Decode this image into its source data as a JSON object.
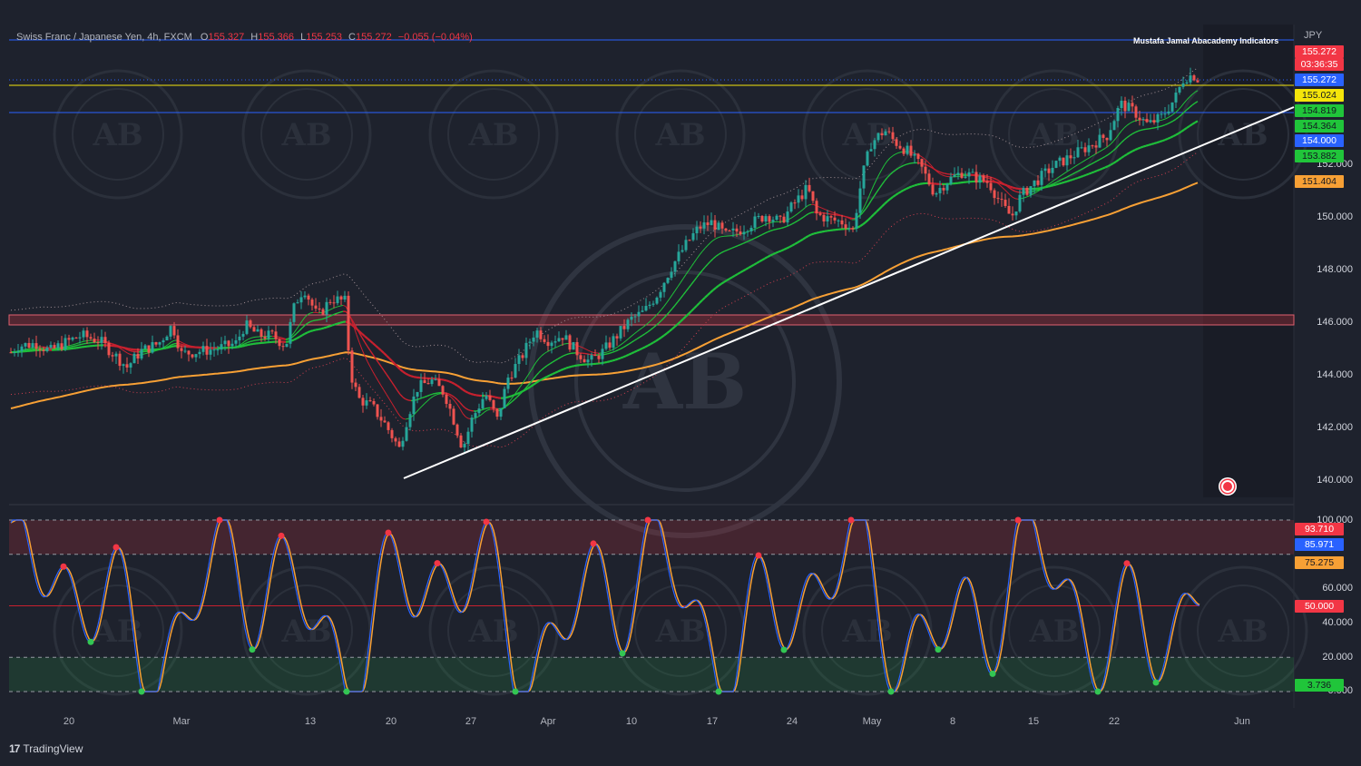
{
  "legend": {
    "symbol": "Swiss Franc / Japanese Yen, 4h, FXCM",
    "o_label": "O",
    "o_value": "155.327",
    "h_label": "H",
    "h_value": "155.366",
    "l_label": "L",
    "l_value": "155.253",
    "c_label": "C",
    "c_value": "155.272",
    "change": "−0.055 (−0.04%)"
  },
  "indicator_name": "Mustafa Jamal Abacademy Indicators",
  "currency": "JPY",
  "price_axis": [
    "140.000",
    "142.000",
    "144.000",
    "146.000",
    "148.000",
    "150.000",
    "152.000"
  ],
  "price_tags": {
    "last": "155.272",
    "countdown": "03:36:35",
    "current": "155.272",
    "yellow": "155.024",
    "green1": "154.819",
    "green2": "154.364",
    "blue": "154.000",
    "green3": "153.882",
    "orange": "151.404"
  },
  "osc_axis": [
    "100.000",
    "60.000",
    "40.000",
    "20.000",
    "0.000"
  ],
  "osc_tags": {
    "red": "93.710",
    "blue": "85.971",
    "orange": "75.275",
    "mid": "50.000",
    "green": "3.736"
  },
  "time_axis": [
    "20",
    "Mar",
    "13",
    "20",
    "27",
    "Apr",
    "10",
    "17",
    "24",
    "May",
    "8",
    "15",
    "22",
    "Jun"
  ],
  "watermark": "AB",
  "brand": "TradingView",
  "brand_mark": "17",
  "colors": {
    "up": "#26a69a",
    "down": "#ef5350",
    "accent": "#2962ff",
    "ema200": "#f7a035",
    "trend": "#ffffff"
  },
  "chart_data": {
    "type": "line",
    "series_type": "candlestick",
    "yrange": [
      140,
      156
    ],
    "close_path": [
      [
        0,
        144.6
      ],
      [
        20,
        145.2
      ],
      [
        40,
        145.3
      ],
      [
        55,
        145.0
      ],
      [
        70,
        145.3
      ],
      [
        90,
        145.6
      ],
      [
        110,
        145.4
      ],
      [
        125,
        144.9
      ],
      [
        140,
        144.4
      ],
      [
        155,
        145.0
      ],
      [
        175,
        145.3
      ],
      [
        190,
        146.0
      ],
      [
        200,
        144.9
      ],
      [
        220,
        145.0
      ],
      [
        240,
        145.1
      ],
      [
        260,
        145.3
      ],
      [
        270,
        146.0
      ],
      [
        285,
        145.6
      ],
      [
        300,
        145.6
      ],
      [
        315,
        145.2
      ],
      [
        325,
        146.8
      ],
      [
        335,
        147.4
      ],
      [
        350,
        146.3
      ],
      [
        365,
        147.0
      ],
      [
        380,
        146.9
      ],
      [
        386,
        144.2
      ],
      [
        395,
        143.2
      ],
      [
        410,
        142.9
      ],
      [
        425,
        142.2
      ],
      [
        440,
        141.3
      ],
      [
        450,
        142.6
      ],
      [
        460,
        143.6
      ],
      [
        475,
        143.9
      ],
      [
        490,
        143.4
      ],
      [
        500,
        142.4
      ],
      [
        510,
        141.3
      ],
      [
        520,
        142.4
      ],
      [
        535,
        143.4
      ],
      [
        548,
        142.4
      ],
      [
        560,
        144.0
      ],
      [
        575,
        144.8
      ],
      [
        590,
        145.8
      ],
      [
        605,
        145.4
      ],
      [
        620,
        145.6
      ],
      [
        635,
        145.0
      ],
      [
        650,
        144.6
      ],
      [
        665,
        145.0
      ],
      [
        680,
        145.6
      ],
      [
        695,
        146.2
      ],
      [
        710,
        146.5
      ],
      [
        725,
        147.2
      ],
      [
        740,
        148.2
      ],
      [
        755,
        149.0
      ],
      [
        770,
        149.7
      ],
      [
        785,
        149.9
      ],
      [
        800,
        149.4
      ],
      [
        815,
        149.6
      ],
      [
        830,
        149.9
      ],
      [
        845,
        150.2
      ],
      [
        860,
        149.9
      ],
      [
        875,
        150.6
      ],
      [
        890,
        151.2
      ],
      [
        900,
        150.2
      ],
      [
        915,
        150.0
      ],
      [
        930,
        149.9
      ],
      [
        940,
        149.6
      ],
      [
        950,
        151.6
      ],
      [
        960,
        152.9
      ],
      [
        975,
        153.4
      ],
      [
        985,
        153.0
      ],
      [
        1000,
        152.6
      ],
      [
        1015,
        152.0
      ],
      [
        1030,
        151.0
      ],
      [
        1045,
        151.5
      ],
      [
        1060,
        151.8
      ],
      [
        1075,
        151.6
      ],
      [
        1090,
        151.4
      ],
      [
        1105,
        150.5
      ],
      [
        1115,
        150.1
      ],
      [
        1125,
        150.9
      ],
      [
        1140,
        151.4
      ],
      [
        1160,
        152.0
      ],
      [
        1175,
        152.3
      ],
      [
        1190,
        152.6
      ],
      [
        1205,
        152.9
      ],
      [
        1220,
        153.2
      ],
      [
        1235,
        154.4
      ],
      [
        1250,
        154.1
      ],
      [
        1265,
        153.6
      ],
      [
        1280,
        153.9
      ],
      [
        1295,
        154.6
      ],
      [
        1305,
        155.4
      ],
      [
        1315,
        155.5
      ],
      [
        1322,
        155.3
      ]
    ],
    "ema200_end": 151.404,
    "oscillator": {
      "levels": [
        80,
        50,
        20
      ],
      "range": [
        0,
        100
      ]
    }
  }
}
